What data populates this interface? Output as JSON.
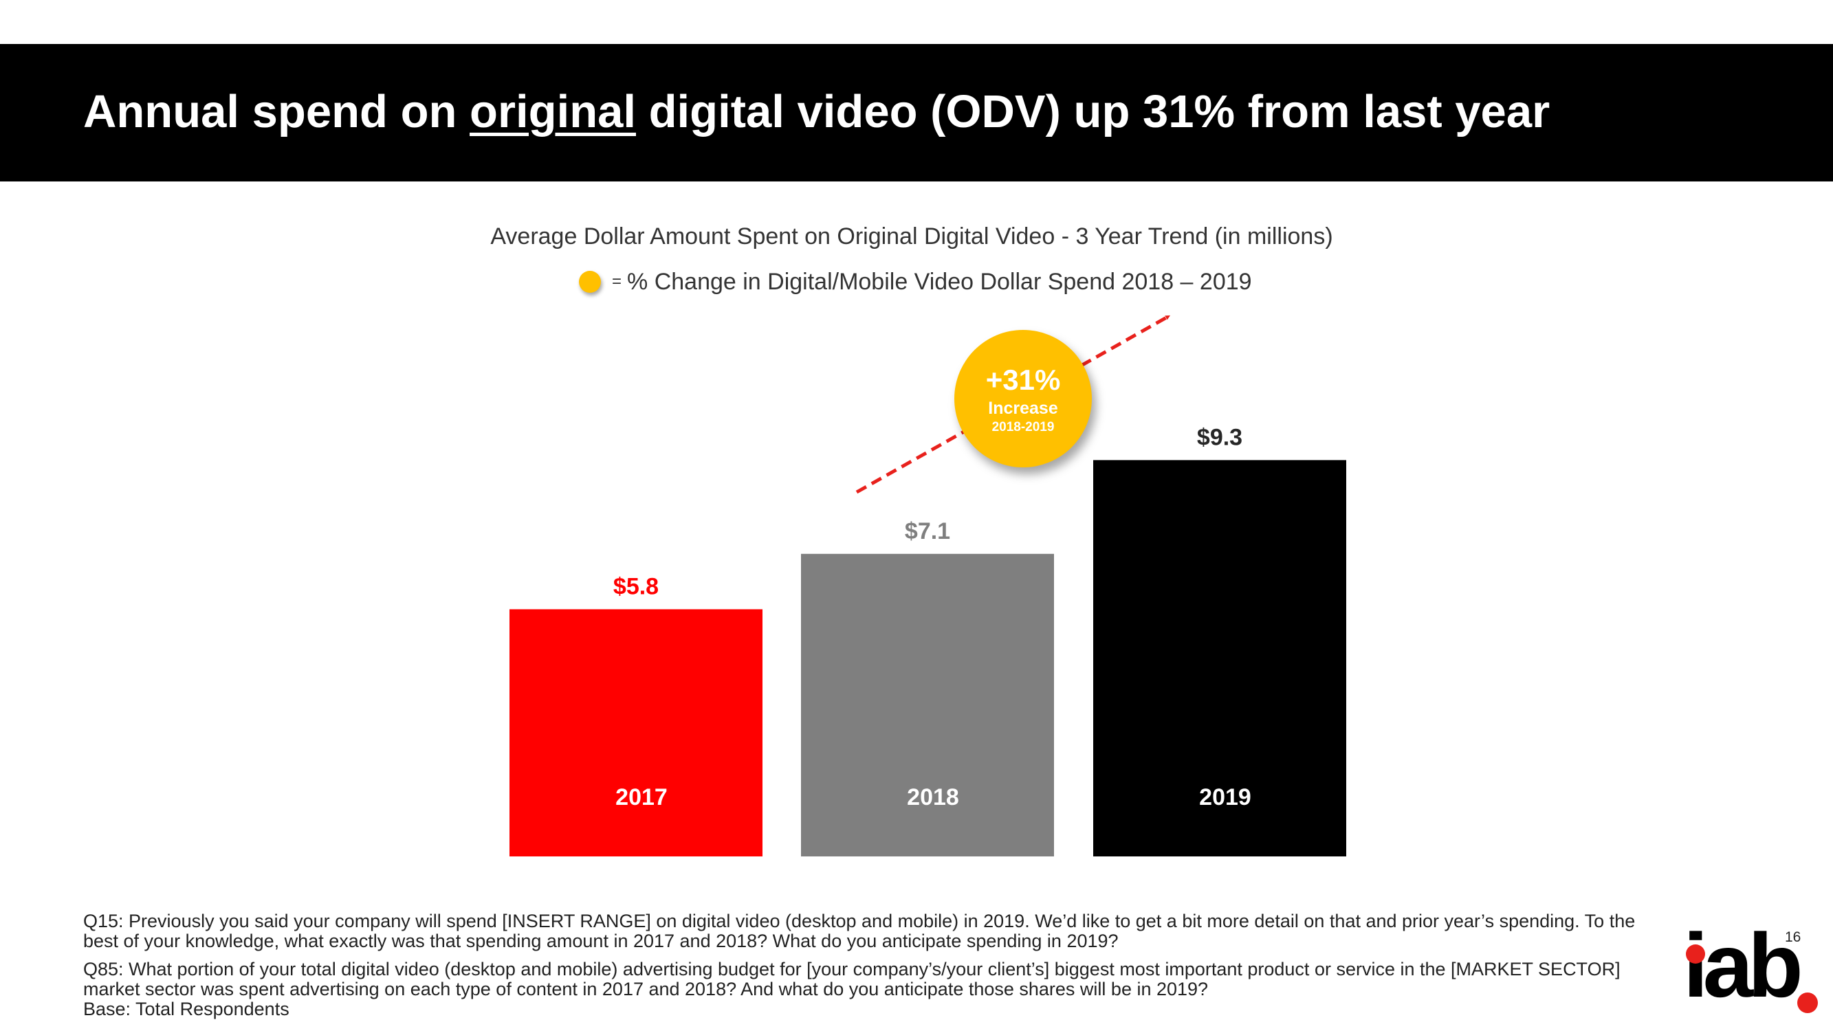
{
  "header": {
    "title_before": "Annual spend on ",
    "title_underlined": "original",
    "title_after": " digital video (ODV) up 31% from last year"
  },
  "legend": {
    "equals": "=",
    "label": "% Change in Digital/Mobile Video Dollar Spend  2018 – 2019",
    "color": "#FFC000"
  },
  "callout": {
    "value": "+31%",
    "label": "Increase",
    "period": "2018-2019"
  },
  "chart_data": {
    "type": "bar",
    "title": "Average Dollar Amount Spent on Original Digital Video - 3 Year Trend  (in millions)",
    "categories": [
      "2017",
      "2018",
      "2019"
    ],
    "values": [
      5.8,
      7.1,
      9.3
    ],
    "value_labels": [
      "$5.8",
      "$7.1",
      "$9.3"
    ],
    "bar_colors": [
      "#FF0000",
      "#7F7F7F",
      "#000000"
    ],
    "value_label_colors": [
      "#FF0000",
      "#7F7F7F",
      "#262626"
    ],
    "grid": false,
    "trend_arrow_color": "#E8211C"
  },
  "footnotes": {
    "q15": "Q15: Previously you said your company will spend [INSERT RANGE] on digital video (desktop and mobile) in 2019.  We’d like to get a bit more detail on that and prior year’s spending. To the best of your knowledge, what exactly was that spending amount in 2017 and 2018? What do you anticipate spending in 2019?",
    "q85": "Q85:  What portion of your total digital video (desktop and mobile) advertising budget for [your company’s/your client’s] biggest most important product or service in the [MARKET SECTOR] market sector was spent advertising on each type of content in 2017 and 2018? And what do you anticipate those shares will be in 2019?",
    "base": "Base: Total Respondents"
  },
  "page_number": "16",
  "logo": {
    "text": "iab",
    "accent_color": "#E8211C"
  }
}
